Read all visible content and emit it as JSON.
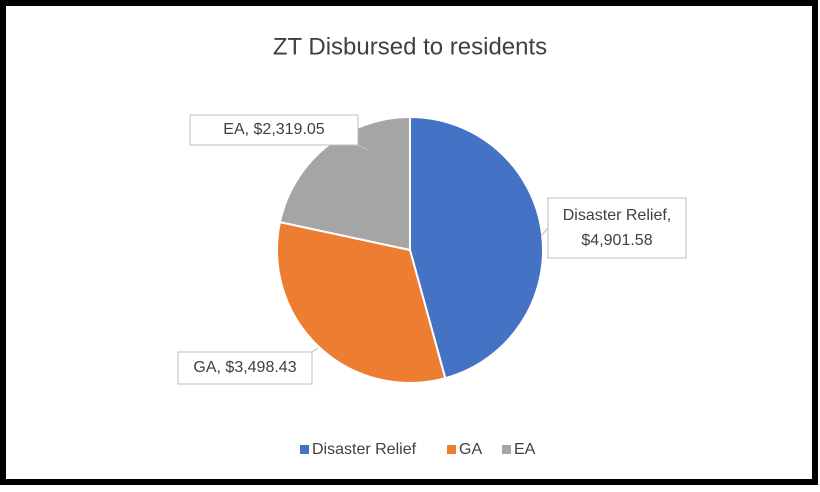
{
  "chart_data": {
    "type": "pie",
    "title": "ZT Disbursed to residents",
    "categories": [
      "Disaster Relief",
      "GA",
      "EA"
    ],
    "values": [
      4901.58,
      3498.43,
      2319.05
    ],
    "value_labels": [
      "Disaster Relief, $4,901.58",
      "GA, $3,498.43",
      "EA, $2,319.05"
    ],
    "colors": [
      "#4472c4",
      "#ed7d31",
      "#a5a5a5"
    ],
    "legend": "bottom"
  }
}
